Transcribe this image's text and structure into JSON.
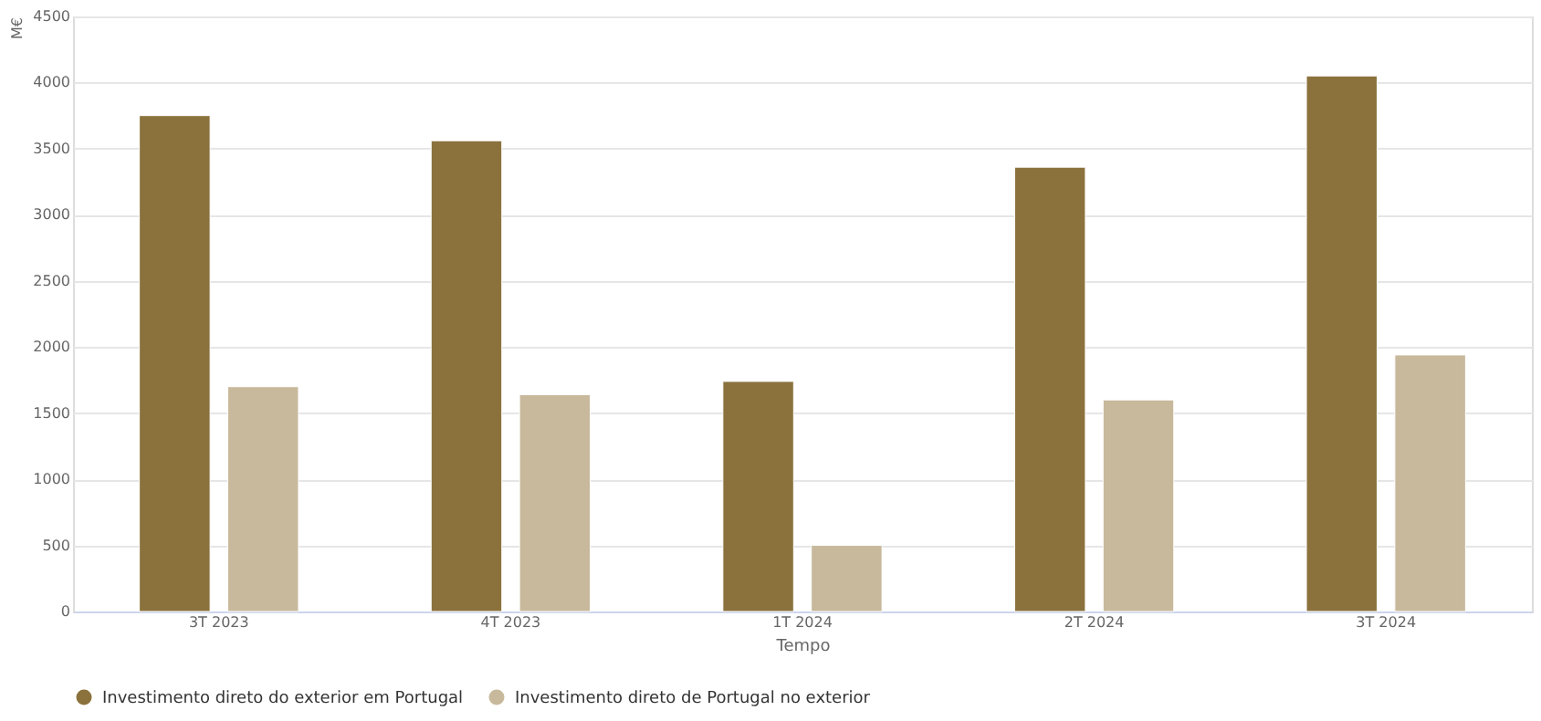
{
  "chart_data": {
    "type": "bar",
    "xlabel": "Tempo",
    "ylabel": "M€",
    "categories": [
      "3T 2023",
      "4T 2023",
      "1T 2024",
      "2T 2024",
      "3T 2024"
    ],
    "series": [
      {
        "name": "Investimento direto do exterior em Portugal",
        "color": "#8b723d",
        "values": [
          3750,
          3560,
          1740,
          3360,
          4050
        ]
      },
      {
        "name": "Investimento direto de Portugal no exterior",
        "color": "#c8b99c",
        "values": [
          1700,
          1640,
          500,
          1600,
          1940
        ]
      }
    ],
    "ylim": [
      0,
      4500
    ],
    "yticks": [
      0,
      500,
      1000,
      1500,
      2000,
      2500,
      3000,
      3500,
      4000,
      4500
    ],
    "grid": "y",
    "legend": "bottom"
  }
}
